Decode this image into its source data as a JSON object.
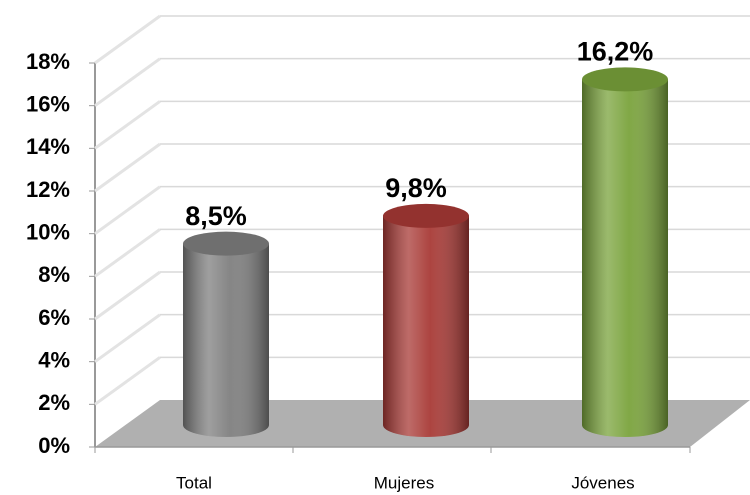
{
  "chart_data": {
    "type": "bar3d",
    "categories": [
      "Total",
      "Mujeres",
      "Jóvenes"
    ],
    "values": [
      8.5,
      9.8,
      16.2
    ],
    "value_labels": [
      "8,5%",
      "9,8%",
      "16,2%"
    ],
    "colors": [
      "#7f7f7f",
      "#a83a36",
      "#7aa33c"
    ],
    "ylim": [
      0,
      18
    ],
    "yticks": [
      {
        "value": 0,
        "label": "0%"
      },
      {
        "value": 2,
        "label": "2%"
      },
      {
        "value": 4,
        "label": "4%"
      },
      {
        "value": 6,
        "label": "6%"
      },
      {
        "value": 8,
        "label": "8%"
      },
      {
        "value": 10,
        "label": "10%"
      },
      {
        "value": 12,
        "label": "12%"
      },
      {
        "value": 14,
        "label": "14%"
      },
      {
        "value": 16,
        "label": "16%"
      },
      {
        "value": 18,
        "label": "18%"
      }
    ],
    "grid": true
  }
}
